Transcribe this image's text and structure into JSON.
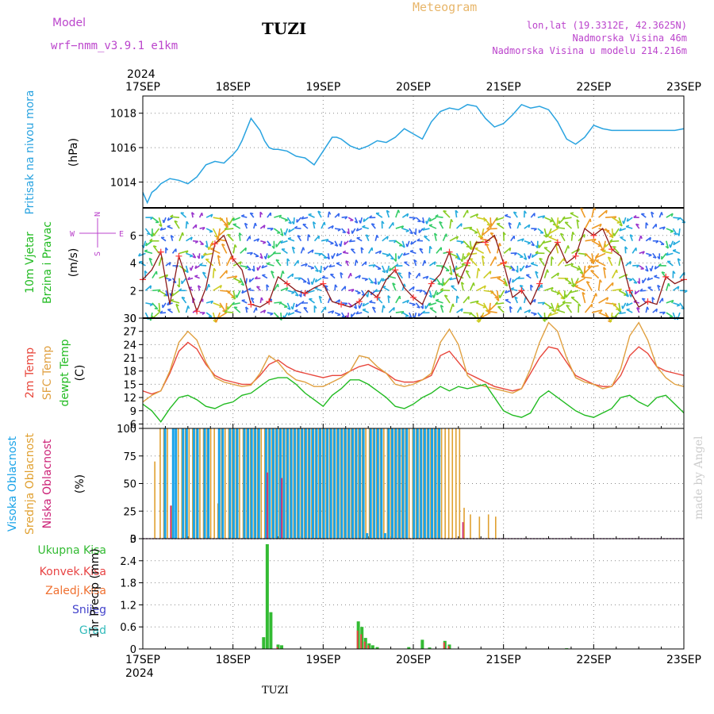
{
  "header": {
    "model_label": "Model",
    "model_name": "wrf−nmm_v3.9.1 e1km",
    "station": "TUZI",
    "title": "Meteogram",
    "lonlat": "lon,lat (19.3312E, 42.3625N)",
    "elevation": "Nadmorska Visina 46m",
    "model_elevation": "Nadmorska Visina u modelu 214.216m"
  },
  "time_axis": {
    "year": "2024",
    "ticks": [
      "17SEP",
      "18SEP",
      "19SEP",
      "20SEP",
      "21SEP",
      "22SEP",
      "23SEP"
    ]
  },
  "footer": {
    "station": "TUZI"
  },
  "watermark": "made by Angel",
  "colors": {
    "pressure": "#29a3e0",
    "wind_label": "#22bb22",
    "wind_label2": "#22bb22",
    "compass": "#bb44cc",
    "temp2m": "#e8473c",
    "sfc": "#e0a040",
    "dew": "#22bb22",
    "high_cloud": "#1aa3e8",
    "mid_cloud": "#e0a030",
    "low_cloud": "#cc2277",
    "total_precip": "#33bb33",
    "conv_precip": "#e84444",
    "frz_precip": "#f07030",
    "snow": "#4444cc",
    "hail": "#33bbbb"
  },
  "chart_data": [
    {
      "type": "line",
      "panel": "pressure",
      "ylabel": "Pritisak na nivou mora",
      "unit": "(hPa)",
      "ylim": [
        1012.5,
        1019
      ],
      "yticks": [
        "1014",
        "1016",
        "1018"
      ],
      "ytick_values": [
        1014,
        1016,
        1018
      ],
      "x": [
        0,
        0.05,
        0.1,
        0.15,
        0.2,
        0.3,
        0.4,
        0.5,
        0.6,
        0.7,
        0.8,
        0.9,
        1.0,
        1.05,
        1.1,
        1.2,
        1.3,
        1.35,
        1.4,
        1.45,
        1.5,
        1.6,
        1.7,
        1.8,
        1.9,
        2.0,
        2.1,
        2.15,
        2.2,
        2.3,
        2.4,
        2.5,
        2.6,
        2.7,
        2.8,
        2.9,
        3.0,
        3.1,
        3.2,
        3.3,
        3.4,
        3.5,
        3.6,
        3.7,
        3.8,
        3.9,
        4.0,
        4.1,
        4.2,
        4.3,
        4.4,
        4.5,
        4.6,
        4.7,
        4.8,
        4.9,
        5.0,
        5.1,
        5.2,
        5.3,
        5.4,
        5.5,
        5.6,
        5.7,
        5.8,
        5.9,
        6.0
      ],
      "series": [
        {
          "name": "",
          "values": [
            1013.4,
            1012.8,
            1013.4,
            1013.6,
            1013.9,
            1014.2,
            1014.1,
            1013.9,
            1014.3,
            1015.0,
            1015.2,
            1015.1,
            1015.6,
            1015.9,
            1016.4,
            1017.7,
            1017.0,
            1016.4,
            1016.0,
            1015.9,
            1015.9,
            1015.8,
            1015.5,
            1015.4,
            1015.0,
            1015.8,
            1016.6,
            1016.6,
            1016.5,
            1016.1,
            1015.9,
            1016.1,
            1016.4,
            1016.3,
            1016.6,
            1017.1,
            1016.8,
            1016.5,
            1017.5,
            1018.1,
            1018.3,
            1018.2,
            1018.5,
            1018.4,
            1017.7,
            1017.2,
            1017.4,
            1017.9,
            1018.5,
            1018.3,
            1018.4,
            1018.2,
            1017.5,
            1016.5,
            1016.2,
            1016.6,
            1017.3,
            1017.1,
            1017.0,
            1017.0,
            1017.0,
            1017.0,
            1017.0,
            1017.0,
            1017.0,
            1017.0,
            1017.1
          ]
        }
      ]
    },
    {
      "type": "line",
      "panel": "wind",
      "ylabel": "10m Vjetar",
      "ylabel2": "Brzina i Pravac",
      "unit": "(m/s)",
      "compass": {
        "n": "N",
        "s": "S",
        "e": "E",
        "w": "W"
      },
      "ylim": [
        0,
        8
      ],
      "yticks": [
        "0",
        "2",
        "4",
        "6"
      ],
      "ytick_values": [
        0,
        2,
        4,
        6
      ],
      "x": [
        0,
        0.1,
        0.2,
        0.3,
        0.4,
        0.5,
        0.6,
        0.7,
        0.8,
        0.9,
        1.0,
        1.1,
        1.2,
        1.3,
        1.4,
        1.5,
        1.6,
        1.7,
        1.8,
        1.9,
        2.0,
        2.1,
        2.2,
        2.3,
        2.4,
        2.5,
        2.6,
        2.7,
        2.8,
        2.9,
        3.0,
        3.1,
        3.2,
        3.3,
        3.4,
        3.5,
        3.6,
        3.7,
        3.8,
        3.9,
        4.0,
        4.1,
        4.2,
        4.3,
        4.4,
        4.5,
        4.6,
        4.7,
        4.8,
        4.9,
        5.0,
        5.1,
        5.2,
        5.3,
        5.4,
        5.5,
        5.6,
        5.7,
        5.8,
        5.9,
        6.0
      ],
      "series": [
        {
          "name": "",
          "values": [
            2.8,
            3.5,
            4.8,
            1.0,
            4.5,
            2.5,
            0.5,
            2.2,
            5.4,
            6.0,
            4.3,
            3.5,
            1.0,
            0.8,
            1.2,
            3.0,
            2.5,
            2.0,
            1.8,
            2.2,
            2.5,
            1.2,
            1.0,
            0.8,
            1.2,
            2.0,
            1.5,
            2.8,
            3.5,
            2.2,
            1.5,
            1.0,
            2.5,
            3.2,
            4.8,
            2.5,
            4.0,
            5.5,
            5.5,
            6.0,
            4.0,
            1.5,
            2.0,
            1.0,
            2.5,
            4.5,
            5.5,
            4.0,
            4.5,
            6.5,
            6.0,
            6.5,
            5.0,
            4.5,
            2.0,
            0.8,
            1.2,
            1.0,
            3.0,
            2.5,
            2.8
          ]
        }
      ]
    },
    {
      "type": "line",
      "panel": "temperature",
      "ylabel": "2m Temp",
      "ylabel2": "SFC Temp",
      "ylabel3": "dewpt Temp",
      "unit": "(C)",
      "ylim": [
        5,
        30
      ],
      "yticks": [
        "6",
        "9",
        "12",
        "15",
        "18",
        "21",
        "24",
        "27",
        "30"
      ],
      "ytick_values": [
        6,
        9,
        12,
        15,
        18,
        21,
        24,
        27,
        30
      ],
      "x": [
        0,
        0.1,
        0.2,
        0.3,
        0.4,
        0.5,
        0.6,
        0.7,
        0.8,
        0.9,
        1.0,
        1.1,
        1.2,
        1.3,
        1.4,
        1.5,
        1.6,
        1.7,
        1.8,
        1.9,
        2.0,
        2.1,
        2.2,
        2.3,
        2.4,
        2.5,
        2.6,
        2.7,
        2.8,
        2.9,
        3.0,
        3.1,
        3.2,
        3.3,
        3.4,
        3.5,
        3.6,
        3.7,
        3.8,
        3.9,
        4.0,
        4.1,
        4.2,
        4.3,
        4.4,
        4.5,
        4.6,
        4.7,
        4.8,
        4.9,
        5.0,
        5.1,
        5.2,
        5.3,
        5.4,
        5.5,
        5.6,
        5.7,
        5.8,
        5.9,
        6.0
      ],
      "series": [
        {
          "name": "2m Temp",
          "color_key": "temp2m",
          "values": [
            13.5,
            12.8,
            13.5,
            17.5,
            22.5,
            24.5,
            23.0,
            19.5,
            17.0,
            16.0,
            15.5,
            15.0,
            15.0,
            17.0,
            19.5,
            20.5,
            19.0,
            18.0,
            17.5,
            17.0,
            16.5,
            17.0,
            17.0,
            18.0,
            19.0,
            19.5,
            18.5,
            17.5,
            16.0,
            15.5,
            15.5,
            16.0,
            17.0,
            21.5,
            22.5,
            20.0,
            17.5,
            16.5,
            15.5,
            14.5,
            14.0,
            13.5,
            14.0,
            17.5,
            21.0,
            23.5,
            23.0,
            20.0,
            17.0,
            16.0,
            15.0,
            14.5,
            14.5,
            17.0,
            21.5,
            23.5,
            22.0,
            19.0,
            18.0,
            17.5,
            17.0
          ]
        },
        {
          "name": "SFC Temp",
          "color_key": "sfc",
          "values": [
            11.0,
            12.5,
            13.5,
            18.0,
            24.5,
            27.0,
            25.0,
            20.0,
            16.5,
            15.5,
            15.0,
            14.5,
            14.8,
            17.5,
            21.5,
            20.0,
            17.5,
            16.0,
            15.5,
            14.5,
            14.5,
            15.5,
            16.5,
            18.0,
            21.5,
            21.0,
            19.0,
            17.5,
            15.0,
            14.5,
            15.0,
            16.0,
            17.5,
            24.5,
            27.5,
            24.0,
            17.0,
            15.0,
            14.5,
            14.0,
            13.5,
            13.0,
            14.0,
            18.5,
            24.5,
            29.0,
            27.0,
            21.0,
            16.5,
            15.5,
            15.0,
            14.0,
            14.5,
            18.5,
            26.0,
            29.0,
            25.0,
            19.0,
            16.5,
            15.0,
            14.5
          ]
        },
        {
          "name": "dewpt Temp",
          "color_key": "dew",
          "values": [
            10.5,
            9.0,
            6.5,
            9.5,
            12.0,
            12.5,
            11.5,
            10.0,
            9.5,
            10.5,
            11.0,
            12.5,
            13.0,
            14.5,
            16.0,
            16.5,
            16.5,
            15.0,
            13.0,
            11.5,
            10.0,
            12.5,
            14.0,
            16.0,
            16.0,
            15.0,
            13.5,
            12.0,
            10.0,
            9.5,
            10.5,
            12.0,
            13.0,
            14.5,
            13.5,
            14.5,
            14.0,
            14.5,
            15.0,
            12.0,
            9.0,
            8.0,
            7.5,
            8.5,
            12.0,
            13.5,
            12.0,
            10.5,
            9.0,
            8.0,
            7.5,
            8.5,
            9.5,
            12.0,
            12.5,
            11.0,
            10.0,
            12.0,
            12.5,
            10.5,
            8.5
          ]
        }
      ]
    },
    {
      "type": "bar",
      "panel": "clouds",
      "ylabel": "Visoka Oblacnost",
      "ylabel2": "Srednja Oblacnost",
      "ylabel3": "Niska Oblacnost",
      "unit": "(%)",
      "ylim": [
        0,
        100
      ],
      "yticks": [
        "0",
        "25",
        "50",
        "75",
        "100"
      ],
      "ytick_values": [
        0,
        25,
        50,
        75,
        100
      ],
      "x": [
        0.12,
        0.18,
        0.22,
        0.26,
        0.31,
        0.35,
        0.38,
        0.42,
        0.46,
        0.5,
        0.54,
        0.58,
        0.62,
        0.66,
        0.7,
        0.74,
        0.78,
        0.82,
        0.86,
        0.9,
        0.94,
        0.98,
        1.02,
        1.06,
        1.1,
        1.14,
        1.18,
        1.22,
        1.26,
        1.3,
        1.34,
        1.38,
        1.42,
        1.46,
        1.5,
        1.54,
        1.58,
        1.62,
        1.66,
        1.7,
        1.74,
        1.78,
        1.82,
        1.86,
        1.9,
        1.94,
        1.98,
        2.02,
        2.06,
        2.1,
        2.14,
        2.18,
        2.22,
        2.26,
        2.3,
        2.34,
        2.38,
        2.42,
        2.46,
        2.5,
        2.54,
        2.58,
        2.62,
        2.66,
        2.7,
        2.74,
        2.78,
        2.82,
        2.86,
        2.9,
        2.94,
        2.98,
        3.02,
        3.06,
        3.1,
        3.14,
        3.18,
        3.22,
        3.26,
        3.3,
        3.34,
        3.38,
        3.42,
        3.46,
        3.5,
        3.55,
        3.62,
        3.72,
        3.82,
        3.9
      ],
      "series": [
        {
          "name": "Visoka Oblacnost",
          "color_key": "high_cloud",
          "values": [
            0,
            0,
            0,
            100,
            0,
            100,
            100,
            0,
            100,
            100,
            0,
            100,
            100,
            0,
            100,
            100,
            0,
            0,
            100,
            100,
            0,
            100,
            100,
            100,
            0,
            100,
            100,
            100,
            100,
            100,
            0,
            100,
            100,
            100,
            100,
            100,
            100,
            100,
            100,
            100,
            100,
            100,
            100,
            100,
            100,
            100,
            100,
            100,
            100,
            100,
            100,
            100,
            100,
            100,
            100,
            100,
            100,
            100,
            100,
            5,
            100,
            100,
            100,
            100,
            5,
            100,
            100,
            100,
            100,
            100,
            100,
            0,
            100,
            100,
            100,
            100,
            100,
            100,
            100,
            100,
            0,
            0,
            0,
            0,
            0,
            0,
            0,
            0,
            0,
            0
          ]
        },
        {
          "name": "Srednja Oblacnost",
          "color_key": "mid_cloud",
          "values": [
            70,
            100,
            100,
            100,
            30,
            100,
            100,
            100,
            100,
            100,
            100,
            100,
            100,
            100,
            100,
            100,
            100,
            32,
            100,
            100,
            100,
            100,
            100,
            100,
            100,
            100,
            100,
            100,
            100,
            100,
            100,
            100,
            100,
            100,
            100,
            100,
            100,
            100,
            100,
            100,
            100,
            100,
            100,
            100,
            100,
            100,
            100,
            100,
            100,
            100,
            100,
            100,
            100,
            100,
            100,
            100,
            100,
            100,
            100,
            100,
            100,
            100,
            100,
            100,
            100,
            100,
            100,
            100,
            100,
            100,
            100,
            100,
            100,
            100,
            100,
            100,
            100,
            100,
            100,
            100,
            100,
            100,
            100,
            100,
            100,
            28,
            22,
            20,
            22,
            20
          ]
        },
        {
          "name": "Niska Oblacnost",
          "color_key": "low_cloud",
          "values": [
            0,
            0,
            0,
            0,
            30,
            0,
            0,
            0,
            0,
            0,
            0,
            0,
            0,
            0,
            0,
            0,
            0,
            0,
            0,
            0,
            0,
            0,
            0,
            0,
            0,
            0,
            0,
            0,
            0,
            0,
            0,
            60,
            0,
            0,
            0,
            55,
            0,
            0,
            0,
            0,
            0,
            0,
            0,
            0,
            0,
            0,
            0,
            0,
            0,
            0,
            0,
            0,
            0,
            0,
            0,
            0,
            0,
            0,
            0,
            0,
            0,
            0,
            0,
            0,
            0,
            0,
            0,
            0,
            0,
            0,
            0,
            0,
            0,
            0,
            0,
            0,
            0,
            0,
            0,
            0,
            0,
            0,
            0,
            0,
            0,
            15,
            0,
            0,
            0,
            0
          ]
        }
      ]
    },
    {
      "type": "bar",
      "panel": "precip",
      "ylabel": "1hr Precip (mm)",
      "legend": [
        "Ukupna Kisa",
        "Konvek.Kisa",
        "Zaledj.Kisa",
        "Snijeg",
        "Grad"
      ],
      "ylim": [
        0,
        3
      ],
      "yticks": [
        "0",
        "0.6",
        "1.2",
        "1.8",
        "2.4",
        "3"
      ],
      "ytick_values": [
        0,
        0.6,
        1.2,
        1.8,
        2.4,
        3
      ],
      "x": [
        1.34,
        1.38,
        1.42,
        1.5,
        1.54,
        2.39,
        2.43,
        2.47,
        2.51,
        2.55,
        2.6,
        2.95,
        3.1,
        3.18,
        3.35,
        3.4,
        4.7
      ],
      "series": [
        {
          "name": "Ukupna Kisa",
          "color_key": "total_precip",
          "values": [
            0.32,
            2.85,
            1.0,
            0.12,
            0.1,
            0.75,
            0.6,
            0.3,
            0.15,
            0.1,
            0.05,
            0.05,
            0.25,
            0.04,
            0.22,
            0.12,
            0.02
          ]
        },
        {
          "name": "Konvek.Kisa",
          "color_key": "conv_precip",
          "values": [
            0,
            0,
            0,
            0.05,
            0,
            0.5,
            0.4,
            0.2,
            0.1,
            0,
            0,
            0,
            0,
            0,
            0.18,
            0.08,
            0
          ]
        }
      ]
    }
  ]
}
